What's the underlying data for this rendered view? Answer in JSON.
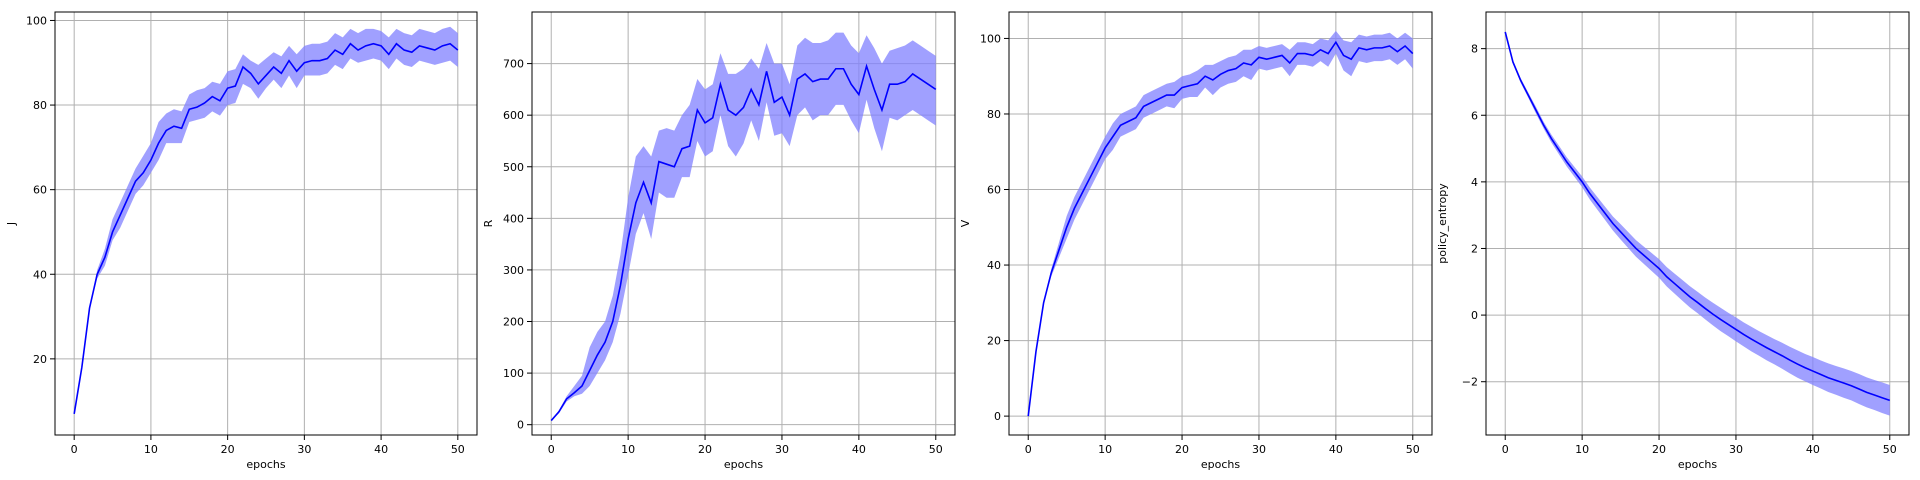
{
  "figure": {
    "background": "#ffffff"
  },
  "style": {
    "line_color": "#0000ff",
    "band_color": "#8080ff",
    "band_alpha": 0.75,
    "grid_color": "#b0b0b0"
  },
  "chart_data": [
    {
      "type": "line",
      "xlabel": "epochs",
      "ylabel": "J",
      "xlim": [
        -2.5,
        52.5
      ],
      "ylim": [
        2,
        102
      ],
      "xticks": [
        0,
        10,
        20,
        30,
        40,
        50
      ],
      "yticks": [
        20,
        40,
        60,
        80,
        100
      ],
      "grid": true,
      "x": [
        0,
        1,
        2,
        3,
        4,
        5,
        6,
        7,
        8,
        9,
        10,
        11,
        12,
        13,
        14,
        15,
        16,
        17,
        18,
        19,
        20,
        21,
        22,
        23,
        24,
        25,
        26,
        27,
        28,
        29,
        30,
        31,
        32,
        33,
        34,
        35,
        36,
        37,
        38,
        39,
        40,
        41,
        42,
        43,
        44,
        45,
        46,
        47,
        48,
        49,
        50
      ],
      "series": [
        {
          "mean": [
            7,
            18,
            32,
            40,
            44,
            50,
            54,
            58,
            62,
            64,
            67,
            71,
            74,
            75,
            74.5,
            79,
            79.5,
            80.5,
            82,
            81,
            84,
            84.5,
            89,
            87.5,
            85,
            87,
            89,
            87.5,
            90.5,
            88,
            90,
            90.5,
            90.5,
            91,
            93,
            92,
            94.5,
            93,
            94,
            94.5,
            94,
            92,
            94.5,
            93,
            92.5,
            94,
            93.5,
            93,
            94,
            94.5,
            93
          ],
          "upper": [
            7,
            18,
            32,
            41,
            46,
            53,
            57,
            61,
            65,
            68,
            71,
            76,
            78,
            79,
            78.5,
            82.5,
            83.5,
            84,
            85.5,
            85,
            88,
            88.5,
            92,
            90.5,
            89.5,
            91,
            92.5,
            91.5,
            94,
            92,
            94,
            94.5,
            94.5,
            95,
            97,
            96,
            98,
            97,
            98,
            98,
            97.5,
            96,
            98,
            97,
            96.5,
            98,
            97.5,
            97,
            98,
            98.5,
            97
          ],
          "lower": [
            7,
            18,
            32,
            39,
            42,
            48,
            51,
            55,
            59,
            61,
            64,
            67,
            71,
            71,
            71,
            76,
            76.5,
            77,
            78.5,
            77.5,
            80,
            80.5,
            85,
            84,
            81.5,
            84,
            86,
            84,
            87,
            84,
            87,
            87,
            87,
            87.5,
            89.5,
            88.5,
            91,
            90,
            90.5,
            91,
            90.5,
            88.5,
            91,
            89.5,
            89,
            90.5,
            90,
            89.5,
            90,
            90.5,
            89
          ]
        }
      ]
    },
    {
      "type": "line",
      "xlabel": "epochs",
      "ylabel": "R",
      "xlim": [
        -2.5,
        52.5
      ],
      "ylim": [
        -20,
        800
      ],
      "xticks": [
        0,
        10,
        20,
        30,
        40,
        50
      ],
      "yticks": [
        0,
        100,
        200,
        300,
        400,
        500,
        600,
        700
      ],
      "grid": true,
      "x": [
        0,
        1,
        2,
        3,
        4,
        5,
        6,
        7,
        8,
        9,
        10,
        11,
        12,
        13,
        14,
        15,
        16,
        17,
        18,
        19,
        20,
        21,
        22,
        23,
        24,
        25,
        26,
        27,
        28,
        29,
        30,
        31,
        32,
        33,
        34,
        35,
        36,
        37,
        38,
        39,
        40,
        41,
        42,
        43,
        44,
        45,
        46,
        47,
        48,
        49,
        50
      ],
      "series": [
        {
          "mean": [
            8,
            25,
            50,
            62,
            75,
            105,
            135,
            160,
            200,
            270,
            360,
            430,
            470,
            430,
            510,
            505,
            500,
            535,
            540,
            610,
            585,
            595,
            660,
            610,
            600,
            615,
            650,
            620,
            685,
            625,
            635,
            600,
            670,
            680,
            665,
            670,
            670,
            690,
            690,
            660,
            640,
            695,
            650,
            610,
            660,
            660,
            665,
            680,
            670,
            660,
            650
          ],
          "upper": [
            8,
            28,
            55,
            75,
            95,
            150,
            180,
            200,
            250,
            330,
            440,
            520,
            540,
            520,
            570,
            575,
            570,
            600,
            620,
            670,
            650,
            660,
            720,
            680,
            680,
            690,
            710,
            690,
            740,
            700,
            700,
            660,
            735,
            750,
            740,
            740,
            745,
            760,
            760,
            735,
            720,
            755,
            730,
            700,
            725,
            730,
            735,
            745,
            735,
            725,
            715
          ],
          "lower": [
            8,
            22,
            45,
            55,
            60,
            75,
            100,
            125,
            160,
            215,
            290,
            370,
            410,
            360,
            450,
            440,
            440,
            480,
            480,
            550,
            520,
            530,
            600,
            540,
            520,
            545,
            590,
            550,
            625,
            560,
            565,
            540,
            600,
            615,
            590,
            600,
            600,
            620,
            620,
            590,
            565,
            630,
            575,
            530,
            595,
            590,
            600,
            610,
            600,
            590,
            580
          ]
        }
      ]
    },
    {
      "type": "line",
      "xlabel": "epochs",
      "ylabel": "V",
      "xlim": [
        -2.5,
        52.5
      ],
      "ylim": [
        -5,
        107
      ],
      "xticks": [
        0,
        10,
        20,
        30,
        40,
        50
      ],
      "yticks": [
        0,
        20,
        40,
        60,
        80,
        100
      ],
      "grid": true,
      "x": [
        0,
        1,
        2,
        3,
        4,
        5,
        6,
        7,
        8,
        9,
        10,
        11,
        12,
        13,
        14,
        15,
        16,
        17,
        18,
        19,
        20,
        21,
        22,
        23,
        24,
        25,
        26,
        27,
        28,
        29,
        30,
        31,
        32,
        33,
        34,
        35,
        36,
        37,
        38,
        39,
        40,
        41,
        42,
        43,
        44,
        45,
        46,
        47,
        48,
        49,
        50
      ],
      "series": [
        {
          "mean": [
            0,
            17,
            30,
            38,
            44,
            50,
            55,
            59,
            63,
            67,
            71,
            74,
            77,
            78,
            79,
            82,
            83,
            84,
            85,
            85,
            87,
            87.5,
            88,
            90,
            89,
            90.5,
            91.5,
            92,
            93.5,
            93,
            95,
            94.5,
            95,
            95.5,
            93.5,
            96,
            96,
            95.5,
            97,
            96,
            99,
            95.5,
            94.5,
            97.5,
            97,
            97.5,
            97.5,
            98,
            96.5,
            98,
            96
          ],
          "upper": [
            0,
            17,
            30,
            39,
            46,
            53,
            58,
            62,
            66,
            70,
            74,
            77.5,
            80,
            81,
            82,
            85,
            86,
            87,
            88,
            88.5,
            90,
            90.5,
            91.5,
            93,
            93,
            94,
            95,
            95.5,
            97,
            97,
            98,
            97.5,
            98,
            98.5,
            97,
            99,
            99,
            98.5,
            100,
            99.5,
            102,
            99.5,
            99,
            101,
            100.5,
            101,
            101,
            101.5,
            100,
            101.5,
            100
          ],
          "lower": [
            0,
            17,
            30,
            37,
            42,
            47,
            52,
            56,
            60,
            64,
            68,
            70.5,
            74,
            75,
            76,
            79,
            80,
            81,
            82,
            81.5,
            84,
            84.5,
            84.5,
            87,
            85,
            87,
            88,
            88.5,
            90,
            89,
            92,
            91.5,
            92,
            92.5,
            90,
            93,
            93,
            92.5,
            94,
            92.5,
            96,
            91.5,
            90,
            94,
            93.5,
            94,
            94,
            94.5,
            93,
            94.5,
            92
          ]
        }
      ]
    },
    {
      "type": "line",
      "xlabel": "epochs",
      "ylabel": "policy_entropy",
      "xlim": [
        -2.5,
        52.5
      ],
      "ylim": [
        -3.6,
        9.1
      ],
      "xticks": [
        0,
        10,
        20,
        30,
        40,
        50
      ],
      "yticks": [
        -2,
        0,
        2,
        4,
        6,
        8
      ],
      "grid": true,
      "x": [
        0,
        1,
        2,
        3,
        4,
        5,
        6,
        7,
        8,
        9,
        10,
        11,
        12,
        13,
        14,
        15,
        16,
        17,
        18,
        19,
        20,
        21,
        22,
        23,
        24,
        25,
        26,
        27,
        28,
        29,
        30,
        31,
        32,
        33,
        34,
        35,
        36,
        37,
        38,
        39,
        40,
        41,
        42,
        43,
        44,
        45,
        46,
        47,
        48,
        49,
        50
      ],
      "series": [
        {
          "mean": [
            8.5,
            7.6,
            7.05,
            6.6,
            6.15,
            5.7,
            5.3,
            4.95,
            4.6,
            4.3,
            4.0,
            3.65,
            3.35,
            3.05,
            2.75,
            2.5,
            2.25,
            2.0,
            1.8,
            1.6,
            1.4,
            1.15,
            0.95,
            0.75,
            0.55,
            0.38,
            0.2,
            0.03,
            -0.13,
            -0.28,
            -0.43,
            -0.58,
            -0.72,
            -0.85,
            -0.98,
            -1.1,
            -1.22,
            -1.35,
            -1.47,
            -1.58,
            -1.68,
            -1.78,
            -1.88,
            -1.96,
            -2.04,
            -2.12,
            -2.22,
            -2.32,
            -2.4,
            -2.48,
            -2.56
          ],
          "upper": [
            8.5,
            7.65,
            7.12,
            6.68,
            6.25,
            5.8,
            5.42,
            5.08,
            4.74,
            4.45,
            4.16,
            3.83,
            3.54,
            3.25,
            2.96,
            2.73,
            2.49,
            2.25,
            2.06,
            1.87,
            1.68,
            1.44,
            1.25,
            1.06,
            0.87,
            0.7,
            0.53,
            0.37,
            0.22,
            0.07,
            -0.07,
            -0.22,
            -0.35,
            -0.48,
            -0.6,
            -0.72,
            -0.83,
            -0.95,
            -1.06,
            -1.17,
            -1.26,
            -1.36,
            -1.45,
            -1.53,
            -1.6,
            -1.68,
            -1.77,
            -1.87,
            -1.95,
            -2.02,
            -2.1
          ],
          "lower": [
            8.5,
            7.55,
            6.98,
            6.52,
            6.05,
            5.6,
            5.18,
            4.82,
            4.46,
            4.15,
            3.84,
            3.47,
            3.16,
            2.85,
            2.54,
            2.27,
            2.01,
            1.75,
            1.54,
            1.33,
            1.12,
            0.86,
            0.65,
            0.44,
            0.23,
            0.06,
            -0.13,
            -0.31,
            -0.48,
            -0.63,
            -0.79,
            -0.94,
            -1.09,
            -1.22,
            -1.36,
            -1.48,
            -1.61,
            -1.75,
            -1.88,
            -1.99,
            -2.1,
            -2.2,
            -2.31,
            -2.39,
            -2.48,
            -2.56,
            -2.67,
            -2.77,
            -2.85,
            -2.94,
            -3.02
          ]
        }
      ]
    }
  ]
}
